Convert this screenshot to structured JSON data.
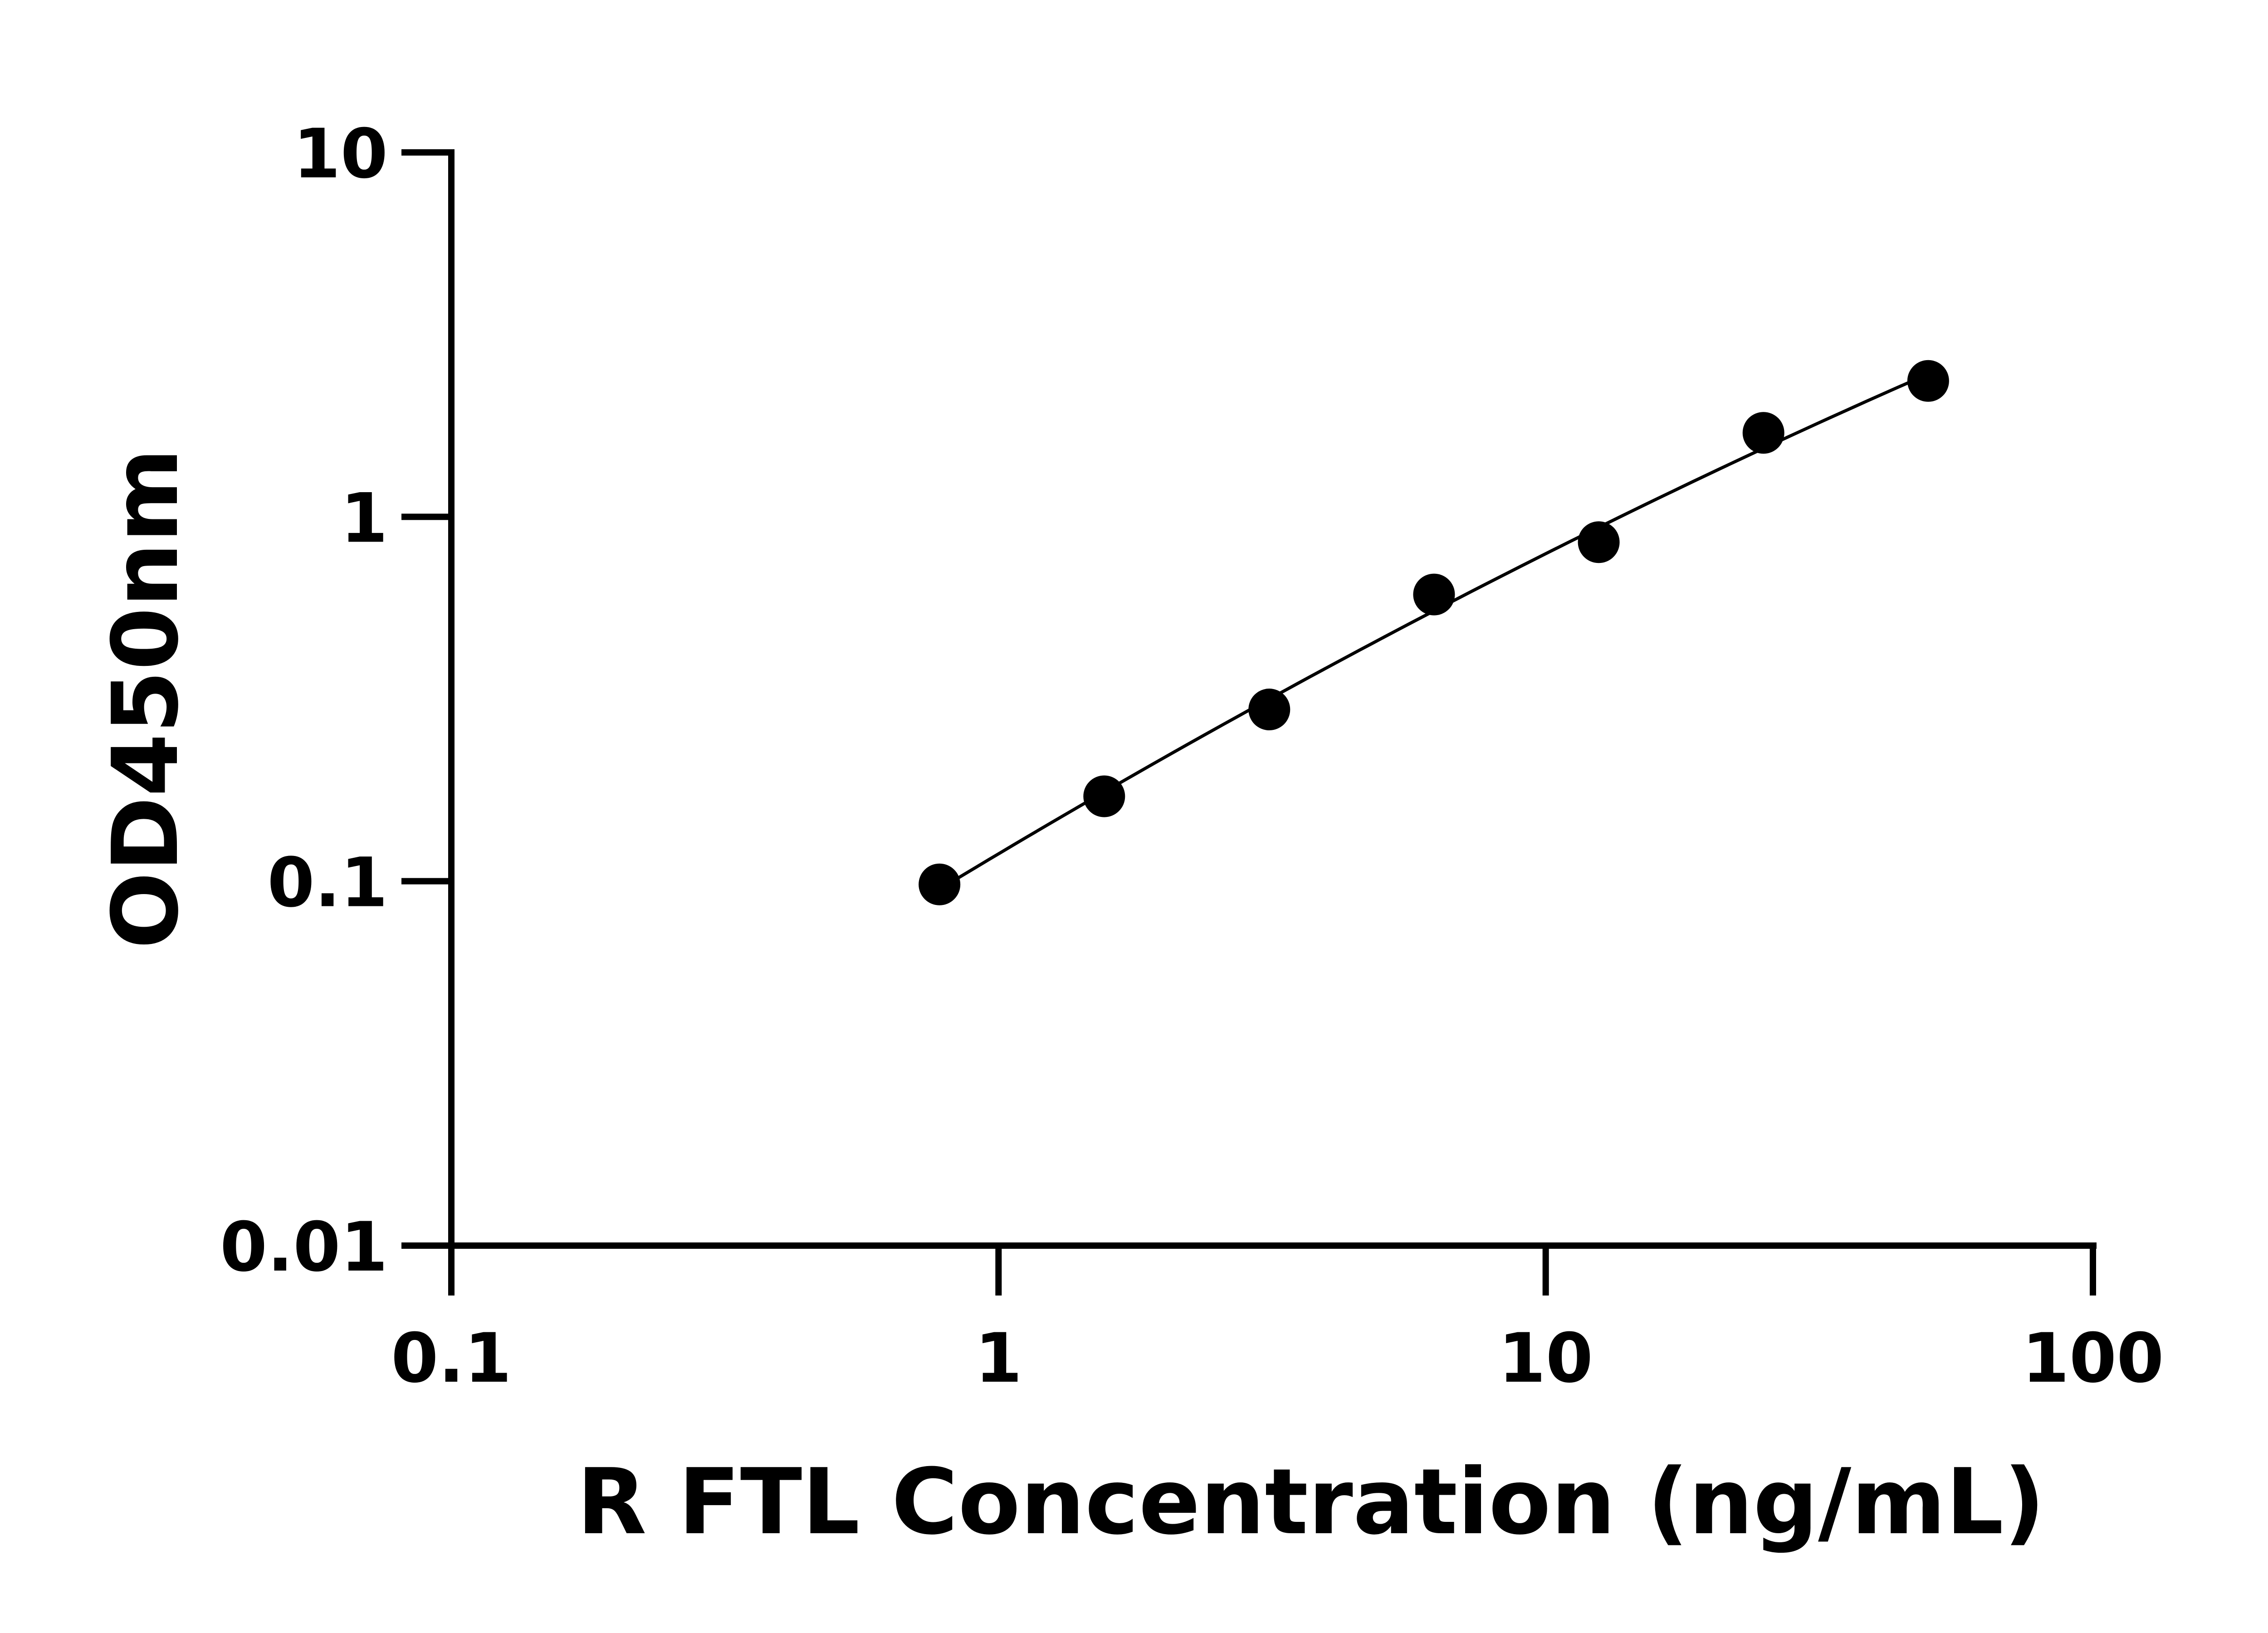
{
  "chart_data": {
    "type": "scatter",
    "title": "",
    "xlabel": "R FTL Concentration (ng/mL)",
    "ylabel": "OD450nm",
    "x_scale": "log",
    "y_scale": "log",
    "xlim": [
      0.1,
      100
    ],
    "ylim": [
      0.01,
      10
    ],
    "x_ticks": [
      "0.1",
      "1",
      "10",
      "100"
    ],
    "y_ticks": [
      "0.01",
      "0.1",
      "1",
      "10"
    ],
    "grid": false,
    "legend": "none",
    "fit_curve": true,
    "point_color": "#000000",
    "series": [
      {
        "x": [
          0.78,
          1.56,
          3.125,
          6.25,
          12.5,
          25,
          50
        ],
        "y": [
          0.098,
          0.171,
          0.296,
          0.612,
          0.852,
          1.7,
          2.36
        ]
      }
    ]
  }
}
